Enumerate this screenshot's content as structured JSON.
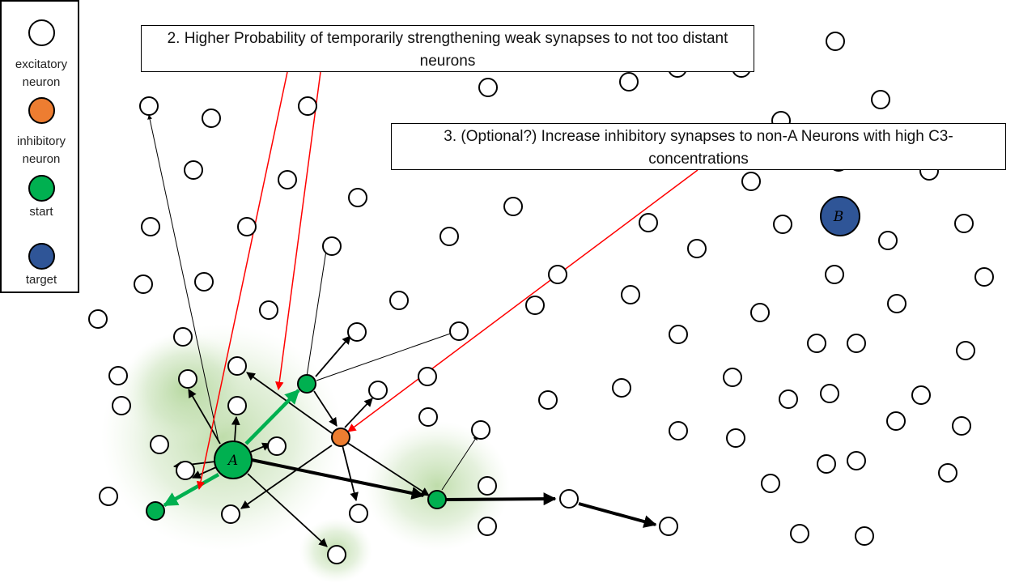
{
  "legend": {
    "items": [
      {
        "label": "excitatory neuron",
        "color": "#ffffff"
      },
      {
        "label": "inhibitory neuron",
        "color": "#ed7d31"
      },
      {
        "label": "start",
        "color": "#00b050"
      },
      {
        "label": "target",
        "color": "#2f5597"
      }
    ]
  },
  "callouts": [
    {
      "text": "2. Higher Probability of temporarily strengthening weak synapses to not too distant neurons"
    },
    {
      "text": "3. (Optional?) Increase inhibitory synapses to non-A Neurons with high C3-concentrations"
    }
  ],
  "nodes": {
    "start_label": "A",
    "target_label": "B"
  },
  "colors": {
    "excitatory": "#ffffff",
    "inhibitory": "#ed7d31",
    "start": "#00b050",
    "target": "#2f5597",
    "highlight_arrow": "#00b050",
    "annotation_line": "#ff0000",
    "glow": "#a9d18e"
  }
}
